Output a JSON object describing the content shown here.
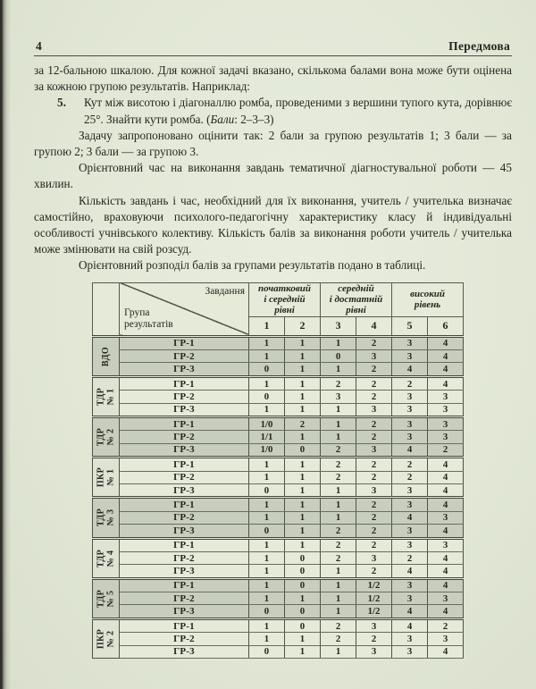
{
  "page": {
    "number": "4",
    "header_title": "Передмова"
  },
  "content": {
    "p_intro": "за 12-бальною шкалою. Для кожної задачі вказано, скількома балами вона може бути оцінена за кожною групою результатів. Наприклад:",
    "problem_number": "5.",
    "problem_text": "Кут між висотою і діагоналлю ромба, проведеними з вершини тупого кута, дорівнює 25°. Знайти кути ромба. (",
    "problem_score_word": "Бали",
    "problem_score_tail": ": 2–3–3)",
    "p_scoring": "Задачу запропоновано оцінити так: 2 бали за групою результатів 1; 3 бали — за групою 2; 3 бали — за групою 3.",
    "p_time": "Орієнтовний час на виконання завдань тематичної діагностувальної роботи — 45 хвилин.",
    "p_teacher": "Кількість завдань і час, необхідний для їх виконання, учитель / учителька визначає самостійно, враховуючи психолого-педагогічну характеристику класу й індивідуальні особливості учнівського колективу. Кількість балів за виконання роботи учитель / учителька може змінювати на свій розсуд.",
    "p_table_intro": "Орієнтовний розподіл балів за групами результатів подано в таблиці."
  },
  "table": {
    "corner_top": "Завдання",
    "corner_bottom": "Група\nрезультатів",
    "level_groups": [
      {
        "label": "початковий\nі середній\nрівні"
      },
      {
        "label": "середній\nі достатній\nрівні"
      },
      {
        "label": "високий\nрівень"
      }
    ],
    "columns": [
      "1",
      "2",
      "3",
      "4",
      "5",
      "6"
    ],
    "groups": [
      {
        "label_lines": [
          "ВДО"
        ],
        "shaded": true,
        "rows": [
          {
            "name": "ГР-1",
            "values": [
              "1",
              "1",
              "1",
              "2",
              "3",
              "4"
            ]
          },
          {
            "name": "ГР-2",
            "values": [
              "1",
              "1",
              "0",
              "3",
              "3",
              "4"
            ]
          },
          {
            "name": "ГР-3",
            "values": [
              "0",
              "1",
              "1",
              "2",
              "4",
              "4"
            ]
          }
        ]
      },
      {
        "label_lines": [
          "ТДР",
          "№ 1"
        ],
        "shaded": false,
        "rows": [
          {
            "name": "ГР-1",
            "values": [
              "1",
              "1",
              "2",
              "2",
              "2",
              "4"
            ]
          },
          {
            "name": "ГР-2",
            "values": [
              "0",
              "1",
              "3",
              "2",
              "3",
              "3"
            ]
          },
          {
            "name": "ГР-3",
            "values": [
              "1",
              "1",
              "1",
              "3",
              "3",
              "3"
            ]
          }
        ]
      },
      {
        "label_lines": [
          "ТДР",
          "№ 2"
        ],
        "shaded": true,
        "rows": [
          {
            "name": "ГР-1",
            "values": [
              "1/0",
              "2",
              "1",
              "2",
              "3",
              "3"
            ]
          },
          {
            "name": "ГР-2",
            "values": [
              "1/1",
              "1",
              "1",
              "2",
              "3",
              "3"
            ]
          },
          {
            "name": "ГР-3",
            "values": [
              "1/0",
              "0",
              "2",
              "3",
              "4",
              "2"
            ]
          }
        ]
      },
      {
        "label_lines": [
          "ПКР",
          "№ 1"
        ],
        "shaded": false,
        "rows": [
          {
            "name": "ГР-1",
            "values": [
              "1",
              "1",
              "2",
              "2",
              "2",
              "4"
            ]
          },
          {
            "name": "ГР-2",
            "values": [
              "1",
              "1",
              "2",
              "2",
              "2",
              "4"
            ]
          },
          {
            "name": "ГР-3",
            "values": [
              "0",
              "1",
              "1",
              "3",
              "3",
              "4"
            ]
          }
        ]
      },
      {
        "label_lines": [
          "ТДР",
          "№ 3"
        ],
        "shaded": true,
        "rows": [
          {
            "name": "ГР-1",
            "values": [
              "1",
              "1",
              "1",
              "2",
              "3",
              "4"
            ]
          },
          {
            "name": "ГР-2",
            "values": [
              "1",
              "1",
              "1",
              "2",
              "4",
              "3"
            ]
          },
          {
            "name": "ГР-3",
            "values": [
              "0",
              "1",
              "2",
              "2",
              "3",
              "4"
            ]
          }
        ]
      },
      {
        "label_lines": [
          "ТДР",
          "№ 4"
        ],
        "shaded": false,
        "rows": [
          {
            "name": "ГР-1",
            "values": [
              "1",
              "1",
              "2",
              "2",
              "3",
              "3"
            ]
          },
          {
            "name": "ГР-2",
            "values": [
              "1",
              "0",
              "2",
              "3",
              "2",
              "4"
            ]
          },
          {
            "name": "ГР-3",
            "values": [
              "1",
              "0",
              "1",
              "2",
              "4",
              "4"
            ]
          }
        ]
      },
      {
        "label_lines": [
          "ТДР",
          "№ 5"
        ],
        "shaded": true,
        "rows": [
          {
            "name": "ГР-1",
            "values": [
              "1",
              "0",
              "1",
              "1/2",
              "3",
              "4"
            ]
          },
          {
            "name": "ГР-2",
            "values": [
              "1",
              "1",
              "1",
              "1/2",
              "3",
              "3"
            ]
          },
          {
            "name": "ГР-3",
            "values": [
              "0",
              "0",
              "1",
              "1/2",
              "4",
              "4"
            ]
          }
        ]
      },
      {
        "label_lines": [
          "ПКР",
          "№ 2"
        ],
        "shaded": false,
        "rows": [
          {
            "name": "ГР-1",
            "values": [
              "1",
              "0",
              "2",
              "3",
              "4",
              "2"
            ]
          },
          {
            "name": "ГР-2",
            "values": [
              "1",
              "1",
              "2",
              "2",
              "3",
              "3"
            ]
          },
          {
            "name": "ГР-3",
            "values": [
              "0",
              "1",
              "1",
              "3",
              "3",
              "4"
            ]
          }
        ]
      }
    ]
  },
  "colors": {
    "paper": "#e2e7d6",
    "shaded_row": "#c8cebe",
    "table_border": "#45453e",
    "text": "#26261f"
  }
}
